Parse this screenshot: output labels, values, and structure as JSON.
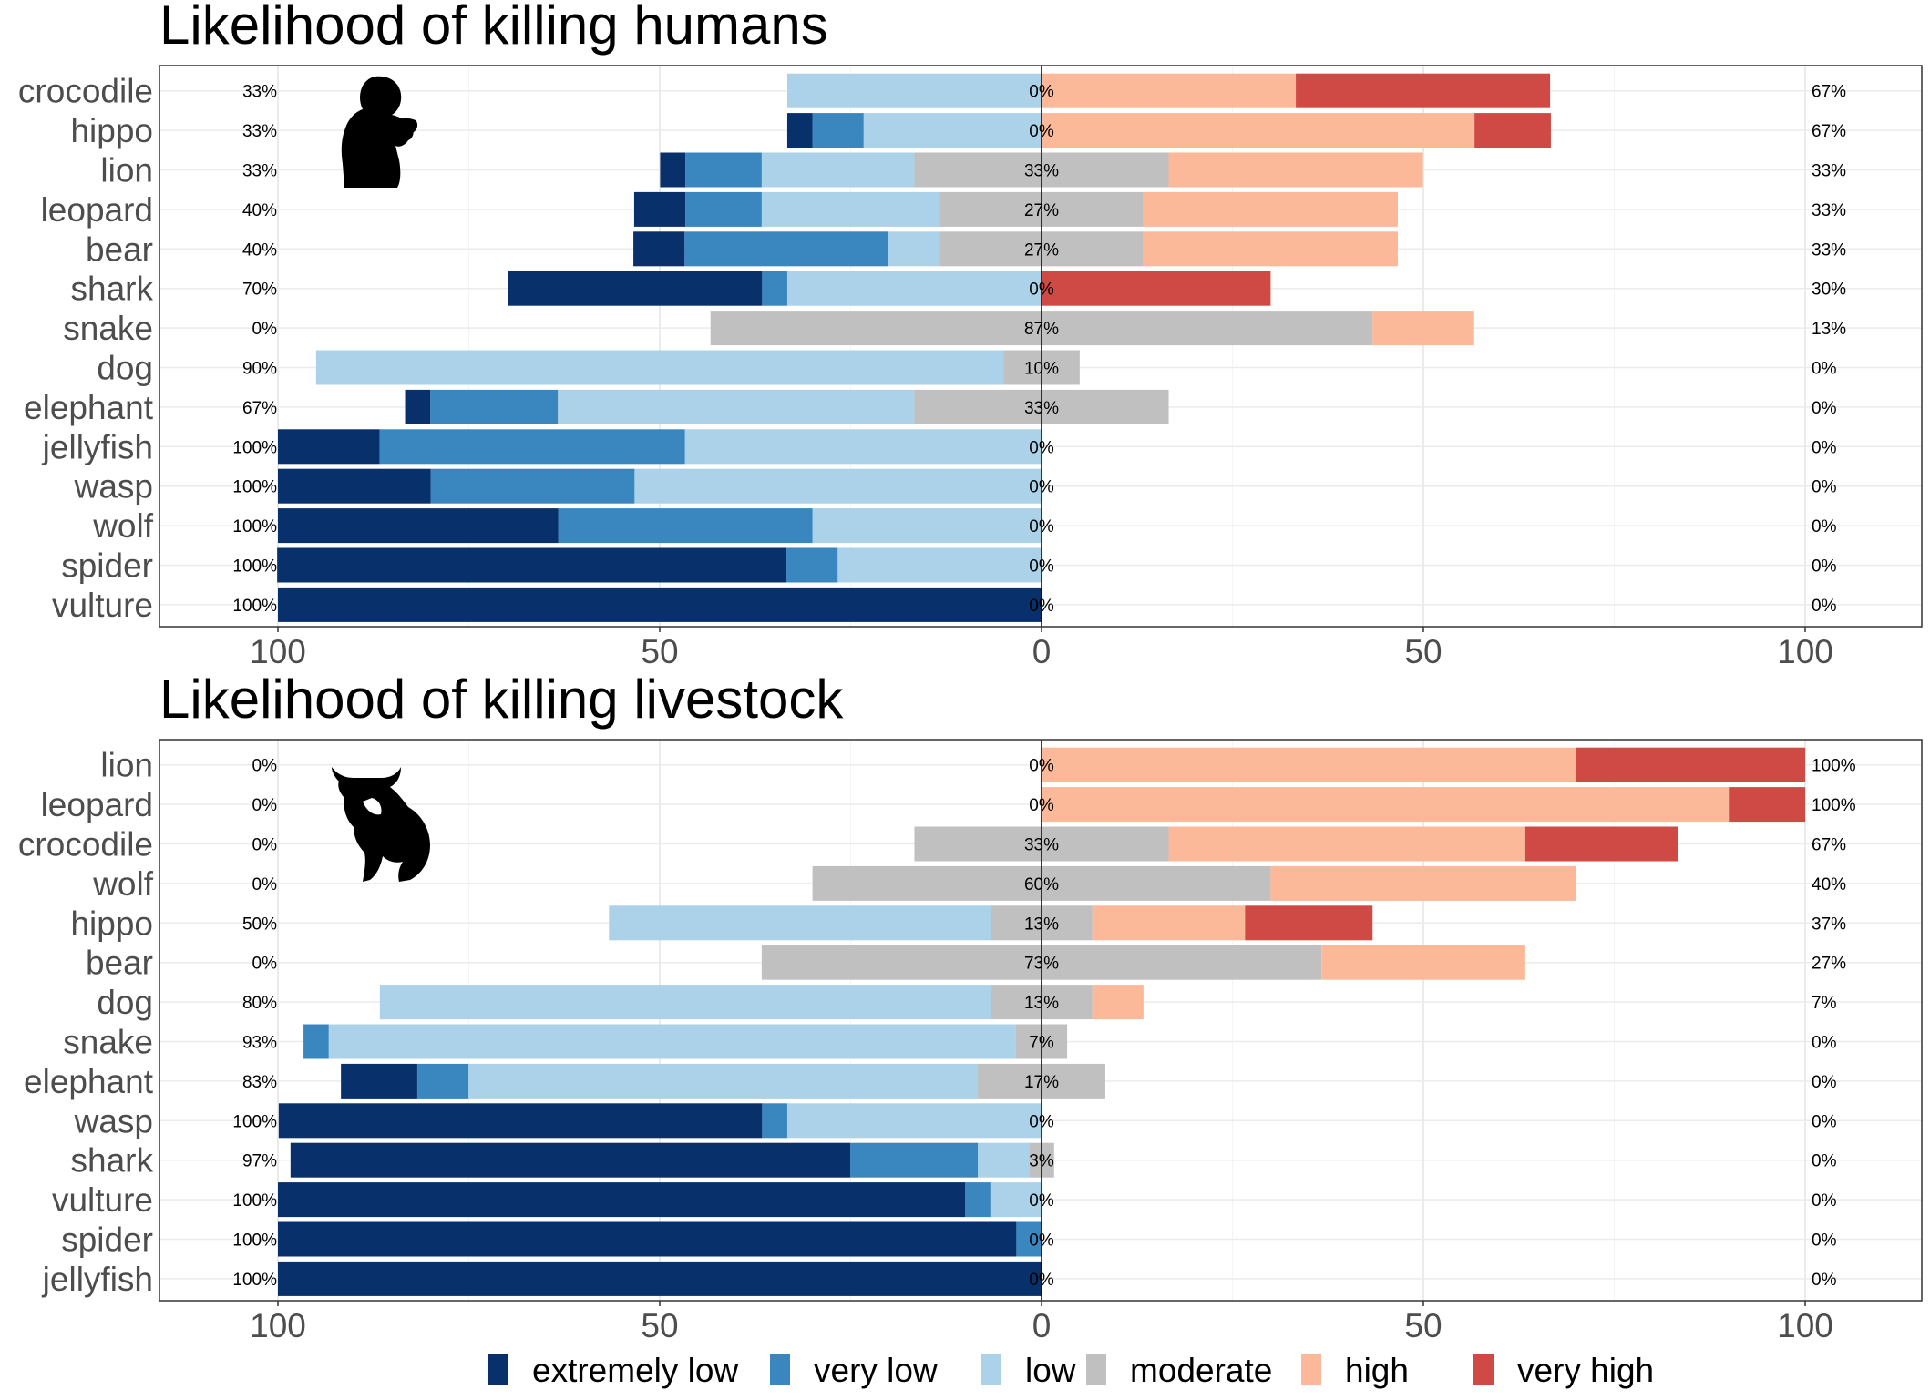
{
  "colors": {
    "extremely low": "#08306b",
    "very low": "#3a87c0",
    "low": "#abd2e9",
    "moderate": "#c0c0c0",
    "high": "#fbb999",
    "very high": "#cf4945"
  },
  "icons": [
    "person-eating-silhouette-icon",
    "charging-bull-silhouette-icon"
  ],
  "chart_data": [
    {
      "type": "bar",
      "orientation": "horizontal-diverging",
      "title": "Likelihood of killing humans",
      "xlabel": "",
      "ylabel": "",
      "xlim": [
        -115,
        115
      ],
      "xticks": [
        -100,
        -50,
        0,
        50,
        100
      ],
      "xtick_labels": [
        "100",
        "50",
        "0",
        "50",
        "100"
      ],
      "grid": true,
      "categories": [
        "crocodile",
        "hippo",
        "lion",
        "leopard",
        "bear",
        "shark",
        "snake",
        "dog",
        "elephant",
        "jellyfish",
        "wasp",
        "wolf",
        "spider",
        "vulture"
      ],
      "series": [
        {
          "name": "extremely low",
          "side": "left",
          "values": [
            0,
            3.3,
            3.3,
            6.7,
            6.7,
            33.3,
            0,
            0,
            3.3,
            13.3,
            20,
            36.7,
            66.7,
            100
          ]
        },
        {
          "name": "very low",
          "side": "left",
          "values": [
            0,
            6.7,
            10,
            10,
            26.7,
            3.3,
            0,
            0,
            16.7,
            40,
            26.7,
            33.3,
            6.7,
            0
          ]
        },
        {
          "name": "low",
          "side": "left",
          "values": [
            33.3,
            23.3,
            20,
            23.3,
            6.7,
            33.3,
            0,
            90,
            46.7,
            46.7,
            53.3,
            30,
            26.7,
            0
          ]
        },
        {
          "name": "moderate",
          "side": "center",
          "values": [
            0,
            0,
            33.3,
            26.7,
            26.7,
            0,
            86.7,
            10,
            33.3,
            0,
            0,
            0,
            0,
            0
          ]
        },
        {
          "name": "high",
          "side": "right",
          "values": [
            33.3,
            56.7,
            33.3,
            33.3,
            33.3,
            0,
            13.3,
            0,
            0,
            0,
            0,
            0,
            0,
            0
          ]
        },
        {
          "name": "very high",
          "side": "right",
          "values": [
            33.3,
            10,
            0,
            0,
            0,
            30,
            0,
            0,
            0,
            0,
            0,
            0,
            0,
            0
          ]
        }
      ],
      "left_labels": [
        "33%",
        "33%",
        "33%",
        "40%",
        "40%",
        "70%",
        "0%",
        "90%",
        "67%",
        "100%",
        "100%",
        "100%",
        "100%",
        "100%"
      ],
      "center_labels": [
        "0%",
        "0%",
        "33%",
        "27%",
        "27%",
        "0%",
        "87%",
        "10%",
        "33%",
        "0%",
        "0%",
        "0%",
        "0%",
        "0%"
      ],
      "right_labels": [
        "67%",
        "67%",
        "33%",
        "33%",
        "33%",
        "30%",
        "13%",
        "0%",
        "0%",
        "0%",
        "0%",
        "0%",
        "0%",
        "0%"
      ]
    },
    {
      "type": "bar",
      "orientation": "horizontal-diverging",
      "title": "Likelihood of killing livestock",
      "xlabel": "",
      "ylabel": "",
      "xlim": [
        -115,
        115
      ],
      "xticks": [
        -100,
        -50,
        0,
        50,
        100
      ],
      "xtick_labels": [
        "100",
        "50",
        "0",
        "50",
        "100"
      ],
      "grid": true,
      "categories": [
        "lion",
        "leopard",
        "crocodile",
        "wolf",
        "hippo",
        "bear",
        "dog",
        "snake",
        "elephant",
        "wasp",
        "shark",
        "vulture",
        "spider",
        "jellyfish"
      ],
      "series": [
        {
          "name": "extremely low",
          "side": "left",
          "values": [
            0,
            0,
            0,
            0,
            0,
            0,
            0,
            0,
            10,
            63.3,
            73.3,
            90,
            96.7,
            100
          ]
        },
        {
          "name": "very low",
          "side": "left",
          "values": [
            0,
            0,
            0,
            0,
            0,
            0,
            0,
            3.3,
            6.7,
            3.3,
            16.7,
            3.3,
            3.3,
            0
          ]
        },
        {
          "name": "low",
          "side": "left",
          "values": [
            0,
            0,
            0,
            0,
            50,
            0,
            80,
            90,
            66.7,
            33.3,
            6.7,
            6.7,
            0,
            0
          ]
        },
        {
          "name": "moderate",
          "side": "center",
          "values": [
            0,
            0,
            33.3,
            60,
            13.3,
            73.3,
            13.3,
            6.7,
            16.7,
            0,
            3.3,
            0,
            0,
            0
          ]
        },
        {
          "name": "high",
          "side": "right",
          "values": [
            70,
            90,
            46.7,
            40,
            20,
            26.7,
            6.7,
            0,
            0,
            0,
            0,
            0,
            0,
            0
          ]
        },
        {
          "name": "very high",
          "side": "right",
          "values": [
            30,
            10,
            20,
            0,
            16.7,
            0,
            0,
            0,
            0,
            0,
            0,
            0,
            0,
            0
          ]
        }
      ],
      "left_labels": [
        "0%",
        "0%",
        "0%",
        "0%",
        "50%",
        "0%",
        "80%",
        "93%",
        "83%",
        "100%",
        "97%",
        "100%",
        "100%",
        "100%"
      ],
      "center_labels": [
        "0%",
        "0%",
        "33%",
        "60%",
        "13%",
        "73%",
        "13%",
        "7%",
        "17%",
        "0%",
        "3%",
        "0%",
        "0%",
        "0%"
      ],
      "right_labels": [
        "100%",
        "100%",
        "67%",
        "40%",
        "37%",
        "27%",
        "7%",
        "0%",
        "0%",
        "0%",
        "0%",
        "0%",
        "0%",
        "0%"
      ]
    }
  ],
  "legend": {
    "position": "bottom",
    "items": [
      "extremely low",
      "very low",
      "low",
      "moderate",
      "high",
      "very high"
    ]
  }
}
